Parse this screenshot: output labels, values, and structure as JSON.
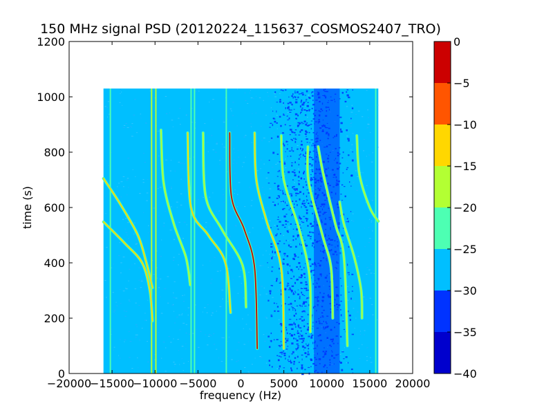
{
  "chart_data": {
    "type": "heatmap",
    "title": "150 MHz signal PSD (20120224_115637_COSMOS2407_TRO)",
    "xlabel": "frequency (Hz)",
    "ylabel": "time (s)",
    "xlim": [
      -20000,
      20000
    ],
    "ylim": [
      0,
      1200
    ],
    "xticks": [
      -20000,
      -15000,
      -10000,
      -5000,
      0,
      5000,
      10000,
      15000,
      20000
    ],
    "xtick_labels": [
      "−20000",
      "−15000",
      "−10000",
      "−5000",
      "0",
      "5000",
      "10000",
      "15000",
      "20000"
    ],
    "yticks": [
      0,
      200,
      400,
      600,
      800,
      1000,
      1200
    ],
    "ytick_labels": [
      "0",
      "200",
      "400",
      "600",
      "800",
      "1000",
      "1200"
    ],
    "grid": false,
    "data_extent": {
      "x": [
        -16000,
        16000
      ],
      "y": [
        0,
        1030
      ]
    },
    "background_level_db": -27.5,
    "colorbar": {
      "levels": [
        -40,
        -35,
        -30,
        -25,
        -20,
        -15,
        -10,
        -5,
        0
      ],
      "tick_labels": [
        "−40",
        "−35",
        "−30",
        "−25",
        "−20",
        "−15",
        "−10",
        "−5",
        "0"
      ],
      "colors": [
        "#0000cd",
        "#0033ff",
        "#00bfff",
        "#4dffb3",
        "#b3ff33",
        "#ffd700",
        "#ff5500",
        "#cc0000"
      ]
    },
    "noisy_band_hz": [
      3000,
      13000
    ],
    "vertical_lines": [
      {
        "x": -15200,
        "level_db": -25
      },
      {
        "x": -10400,
        "level_db": -20
      },
      {
        "x": -9900,
        "level_db": -20
      },
      {
        "x": -5800,
        "level_db": -25
      },
      {
        "x": -5400,
        "level_db": -25
      },
      {
        "x": -1700,
        "level_db": -25
      },
      {
        "x": 15700,
        "level_db": -25
      }
    ],
    "traces": [
      {
        "x": [
          -16000,
          -14000,
          -12000,
          -11000,
          -10300
        ],
        "y": [
          705,
          610,
          500,
          400,
          310
        ],
        "level_db": -15
      },
      {
        "x": [
          -16000,
          -13500,
          -11500,
          -10600,
          -10300
        ],
        "y": [
          548,
          470,
          400,
          300,
          190
        ],
        "level_db": -15
      },
      {
        "x": [
          -9300,
          -9000,
          -7800,
          -6400,
          -5900
        ],
        "y": [
          880,
          690,
          540,
          420,
          320
        ],
        "level_db": -20
      },
      {
        "x": [
          -6200,
          -5800,
          -3800,
          -1800,
          -1200
        ],
        "y": [
          870,
          600,
          500,
          400,
          220
        ],
        "level_db": -15
      },
      {
        "x": [
          -4400,
          -4100,
          -2200,
          200,
          600
        ],
        "y": [
          870,
          640,
          520,
          390,
          240
        ],
        "level_db": -20
      },
      {
        "x": [
          -1300,
          -1100,
          400,
          1600,
          1900
        ],
        "y": [
          870,
          640,
          520,
          380,
          90
        ],
        "level_db": -5
      },
      {
        "x": [
          1600,
          1800,
          3000,
          4700,
          5000
        ],
        "y": [
          870,
          700,
          550,
          380,
          90
        ],
        "level_db": -15
      },
      {
        "x": [
          4700,
          5000,
          6800,
          8000,
          8100
        ],
        "y": [
          860,
          700,
          520,
          350,
          150
        ],
        "level_db": -20
      },
      {
        "x": [
          7800,
          7900,
          9500,
          10500,
          10700
        ],
        "y": [
          820,
          690,
          500,
          380,
          200
        ],
        "level_db": -20
      },
      {
        "x": [
          9000,
          9600,
          11000,
          12000,
          12400
        ],
        "y": [
          820,
          720,
          540,
          420,
          100
        ],
        "level_db": -20
      },
      {
        "x": [
          11500,
          12000,
          13200,
          14000,
          14100
        ],
        "y": [
          620,
          540,
          420,
          300,
          200
        ],
        "level_db": -20
      },
      {
        "x": [
          13500,
          13800,
          15000,
          16000
        ],
        "y": [
          860,
          720,
          600,
          550
        ],
        "level_db": -20
      }
    ]
  }
}
